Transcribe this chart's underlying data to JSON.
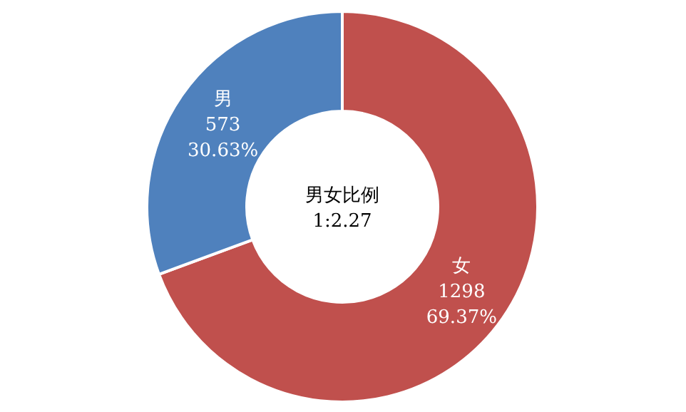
{
  "chart_data": {
    "type": "donut",
    "categories": [
      "女",
      "男"
    ],
    "values": [
      69.37,
      30.63
    ],
    "colors": [
      "#c0504d",
      "#4f81bd"
    ],
    "value_labels": [
      "1298\n69.37%",
      "573\n30.63%"
    ],
    "annotations": [
      "男女比例",
      "1:2.27"
    ]
  }
}
